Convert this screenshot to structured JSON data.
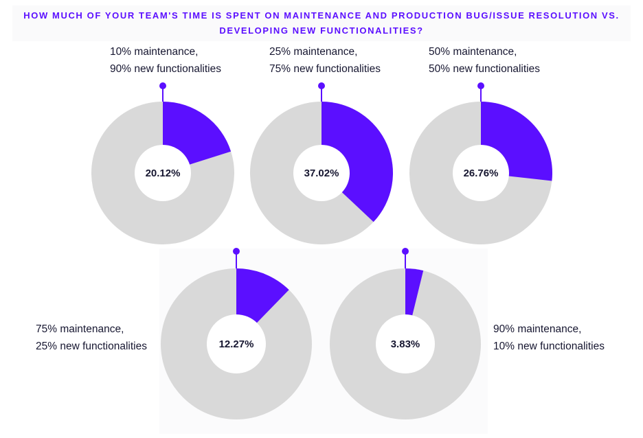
{
  "chart_data": {
    "type": "pie",
    "title": "HOW MUCH OF YOUR TEAM'S TIME IS SPENT ON MAINTENANCE AND PRODUCTION BUG/ISSUE RESOLUTION VS. DEVELOPING NEW FUNCTIONALITIES?",
    "charts": [
      {
        "label_line1": "10% maintenance,",
        "label_line2": "90% new functionalities",
        "value": 20.12,
        "display": "20.12%"
      },
      {
        "label_line1": "25% maintenance,",
        "label_line2": "75% new functionalities",
        "value": 37.02,
        "display": "37.02%"
      },
      {
        "label_line1": "50% maintenance,",
        "label_line2": "50% new functionalities",
        "value": 26.76,
        "display": "26.76%"
      },
      {
        "label_line1": "75% maintenance,",
        "label_line2": "25% new functionalities",
        "value": 12.27,
        "display": "12.27%"
      },
      {
        "label_line1": "90% maintenance,",
        "label_line2": "10% new functionalities",
        "value": 3.83,
        "display": "3.83%"
      }
    ],
    "colors": {
      "highlight": "#5b0fff",
      "rest": "#d9d9d9",
      "hole": "#ffffff",
      "text": "#161630",
      "title": "#5b0fff"
    }
  }
}
